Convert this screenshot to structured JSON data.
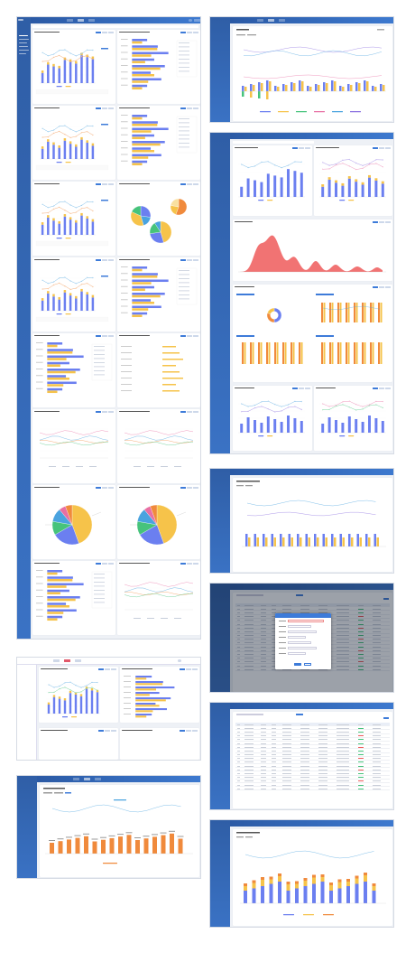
{
  "colors": {
    "sidebar": "#3a72c4",
    "topbar": "#2b5aa5",
    "accent": "#3d7bd9",
    "bar_blue": "#6b7ff0",
    "bar_yellow": "#f6c34a",
    "bar_orange": "#f08a3c",
    "line_pink": "#e86fa3",
    "line_blue": "#4aa3df",
    "red_area": "#ee5b5b",
    "green": "#46c37b"
  },
  "icons": [
    "logo-icon",
    "user-avatar-icon",
    "search-icon",
    "plus-icon",
    "close-icon"
  ],
  "screens": [
    {
      "id": "dashboard-grid-long"
    },
    {
      "id": "single-chart-wide"
    },
    {
      "id": "multi-chart-analysis"
    },
    {
      "id": "trend-chart-small"
    },
    {
      "id": "modal-dialog-table"
    },
    {
      "id": "data-table"
    },
    {
      "id": "bar-chart-bottom"
    },
    {
      "id": "dashboard-small"
    },
    {
      "id": "orange-bar-chart"
    }
  ]
}
